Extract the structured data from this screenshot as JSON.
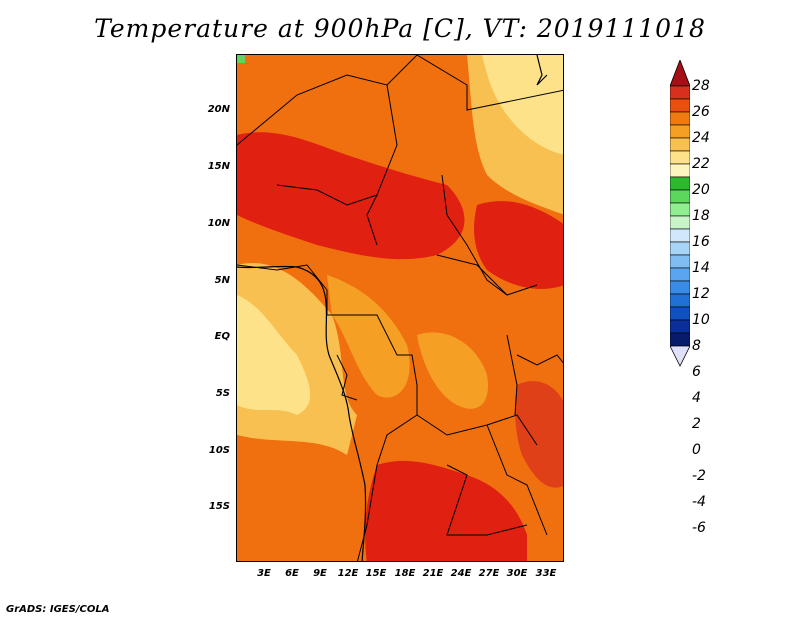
{
  "title": "Temperature at 900hPa [C], VT: 2019111018",
  "credit": "GrADS: IGES/COLA",
  "map": {
    "lat_labels": [
      "20N",
      "15N",
      "10N",
      "5N",
      "EQ",
      "5S",
      "10S",
      "15S"
    ],
    "lon_labels": [
      "3E",
      "6E",
      "9E",
      "12E",
      "15E",
      "18E",
      "21E",
      "24E",
      "27E",
      "30E",
      "33E"
    ]
  },
  "colorbar": {
    "labels": [
      "28",
      "26",
      "24",
      "22",
      "20",
      "18",
      "16",
      "14",
      "12",
      "10",
      "8",
      "6",
      "4",
      "2",
      "0",
      "-2",
      "-4",
      "-6"
    ],
    "colors": [
      "#a50f15",
      "#d7301f",
      "#e8500f",
      "#f07a10",
      "#f5a025",
      "#f8c050",
      "#fde28a",
      "#fdf5c0",
      "#2eb82e",
      "#5cd65c",
      "#90ee90",
      "#c8f5c8",
      "#cfe8fb",
      "#a8d4f7",
      "#80bdf2",
      "#5aa5ee",
      "#3a8be6",
      "#2070d8",
      "#1050c0",
      "#0a2f9a",
      "#081a6a",
      "#e0e0f8"
    ]
  }
}
